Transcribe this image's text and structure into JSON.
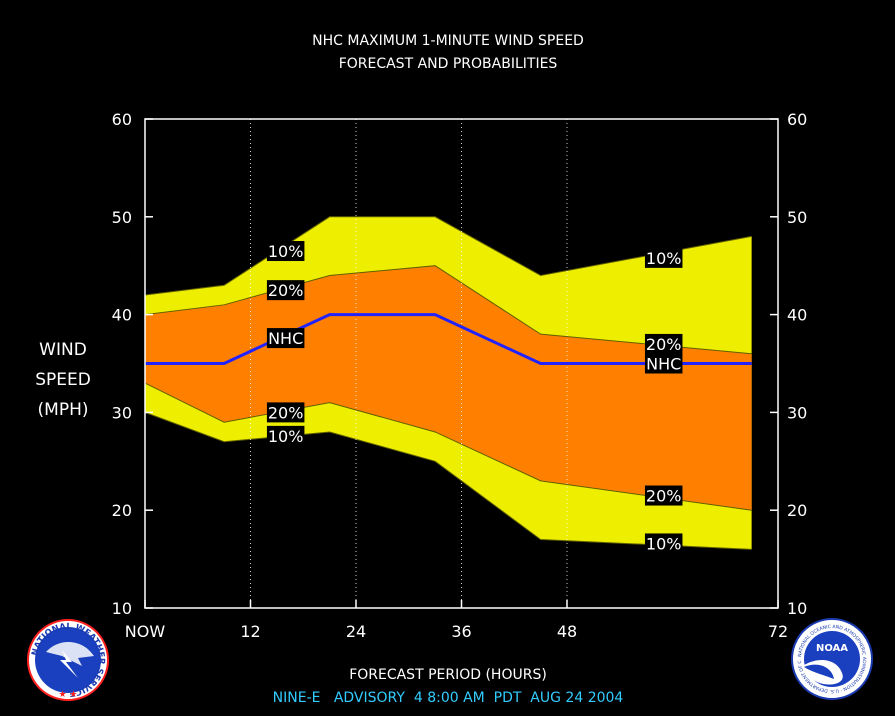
{
  "title_line1": "NHC MAXIMUM 1-MINUTE WIND SPEED",
  "title_line2": "FORECAST AND PROBABILITIES",
  "ylabel_lines": [
    "WIND",
    "SPEED",
    "(MPH)"
  ],
  "xlabel": "FORECAST PERIOD (HOURS)",
  "advisory": "NINE-E   ADVISORY  4 8:00 AM  PDT  AUG 24 2004",
  "logo_left_text": "NATIONAL WEATHER SERVICE",
  "logo_right_text": "NOAA",
  "logo_right_ring_text": "NATIONAL OCEANIC AND ATMOSPHERIC ADMINISTRATION · U.S. DEPARTMENT OF COMMERCE",
  "colors": {
    "background": "#000000",
    "outer_band": "#eeee00",
    "inner_band": "#ff8000",
    "nhc_line": "#2222ff",
    "axes": "#ffffff",
    "advisory_text": "#33ccff"
  },
  "chart_data": {
    "type": "area",
    "title": "NHC MAXIMUM 1-MINUTE WIND SPEED FORECAST AND PROBABILITIES",
    "xlabel": "FORECAST PERIOD (HOURS)",
    "ylabel": "WIND SPEED (MPH)",
    "xlim": [
      0,
      72
    ],
    "ylim": [
      10,
      60
    ],
    "x_ticks": [
      0,
      12,
      24,
      36,
      48,
      72
    ],
    "x_tick_labels": [
      "NOW",
      "12",
      "24",
      "36",
      "48",
      "72"
    ],
    "y_ticks": [
      10,
      20,
      30,
      40,
      50,
      60
    ],
    "grid_x": true,
    "x": [
      0,
      9,
      21,
      33,
      45,
      69
    ],
    "series": [
      {
        "name": "10%",
        "role": "upper_outer",
        "values": [
          42,
          43,
          50,
          50,
          44,
          48
        ]
      },
      {
        "name": "20%",
        "role": "upper_inner",
        "values": [
          40,
          41,
          44,
          45,
          38,
          36
        ]
      },
      {
        "name": "NHC",
        "role": "forecast",
        "values": [
          35,
          35,
          40,
          40,
          35,
          35
        ]
      },
      {
        "name": "20%",
        "role": "lower_inner",
        "values": [
          33,
          29,
          31,
          28,
          23,
          20
        ]
      },
      {
        "name": "10%",
        "role": "lower_outer",
        "values": [
          30,
          27,
          28,
          25,
          17,
          16
        ]
      }
    ],
    "annotations": [
      {
        "text": "10%",
        "x": 16,
        "y": 46.5
      },
      {
        "text": "20%",
        "x": 16,
        "y": 42.5
      },
      {
        "text": "NHC",
        "x": 16,
        "y": 37.6
      },
      {
        "text": "20%",
        "x": 16,
        "y": 30
      },
      {
        "text": "10%",
        "x": 16,
        "y": 27.6
      },
      {
        "text": "10%",
        "x": 59,
        "y": 45.8
      },
      {
        "text": "20%",
        "x": 59,
        "y": 37
      },
      {
        "text": "NHC",
        "x": 59,
        "y": 35
      },
      {
        "text": "20%",
        "x": 59,
        "y": 21.5
      },
      {
        "text": "10%",
        "x": 59,
        "y": 16.6
      }
    ]
  }
}
